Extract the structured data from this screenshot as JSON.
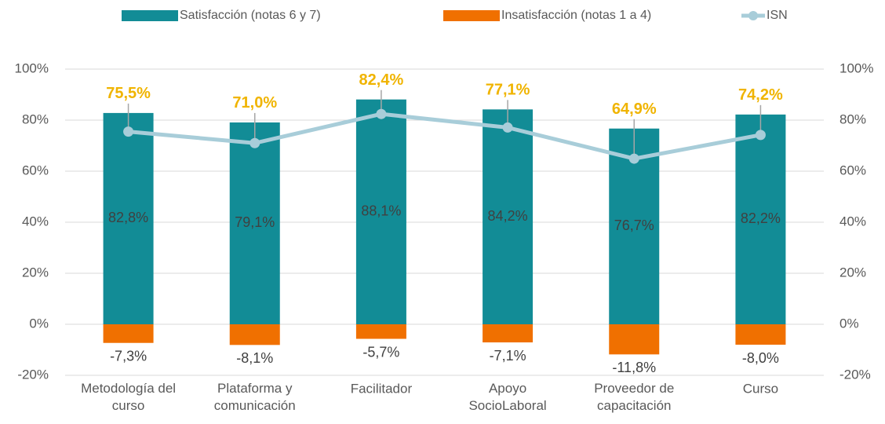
{
  "chart_data": {
    "type": "bar",
    "categories": [
      "Metodología del curso",
      "Plataforma y comunicación",
      "Facilitador",
      "Apoyo SocioLaboral",
      "Proveedor de capacitación",
      "Curso"
    ],
    "series": [
      {
        "name": "Satisfacción (notas 6 y 7)",
        "type": "bar",
        "color": "#128c96",
        "values": [
          82.8,
          79.1,
          88.1,
          84.2,
          76.7,
          82.2
        ],
        "value_labels": [
          "82,8%",
          "79,1%",
          "88,1%",
          "84,2%",
          "76,7%",
          "82,2%"
        ]
      },
      {
        "name": "Insatisfacción (notas 1 a 4)",
        "type": "bar",
        "color": "#f07000",
        "values": [
          -7.3,
          -8.1,
          -5.7,
          -7.1,
          -11.8,
          -8.0
        ],
        "value_labels": [
          "-7,3%",
          "-8,1%",
          "-5,7%",
          "-7,1%",
          "-11,8%",
          "-8,0%"
        ]
      },
      {
        "name": "ISN",
        "type": "line",
        "axis": "y2",
        "color": "#a8cdd9",
        "label_color": "#f0b400",
        "values": [
          75.5,
          71.0,
          82.4,
          77.1,
          64.9,
          74.2
        ],
        "value_labels": [
          "75,5%",
          "71,0%",
          "82,4%",
          "77,1%",
          "64,9%",
          "74,2%"
        ]
      }
    ],
    "ylim": [
      -20,
      100
    ],
    "yticks": [
      {
        "value": -20,
        "label": "-20%"
      },
      {
        "value": 0,
        "label": "0%"
      },
      {
        "value": 20,
        "label": "20%"
      },
      {
        "value": 40,
        "label": "40%"
      },
      {
        "value": 60,
        "label": "60%"
      },
      {
        "value": 80,
        "label": "80%"
      },
      {
        "value": 100,
        "label": "100%"
      }
    ],
    "y2lim": [
      -20,
      100
    ],
    "y2ticks": [
      {
        "value": -20,
        "label": "-20%"
      },
      {
        "value": 0,
        "label": "0%"
      },
      {
        "value": 20,
        "label": "20%"
      },
      {
        "value": 40,
        "label": "40%"
      },
      {
        "value": 60,
        "label": "60%"
      },
      {
        "value": 80,
        "label": "80%"
      },
      {
        "value": 100,
        "label": "100%"
      }
    ],
    "grid": true,
    "legend": "top"
  }
}
